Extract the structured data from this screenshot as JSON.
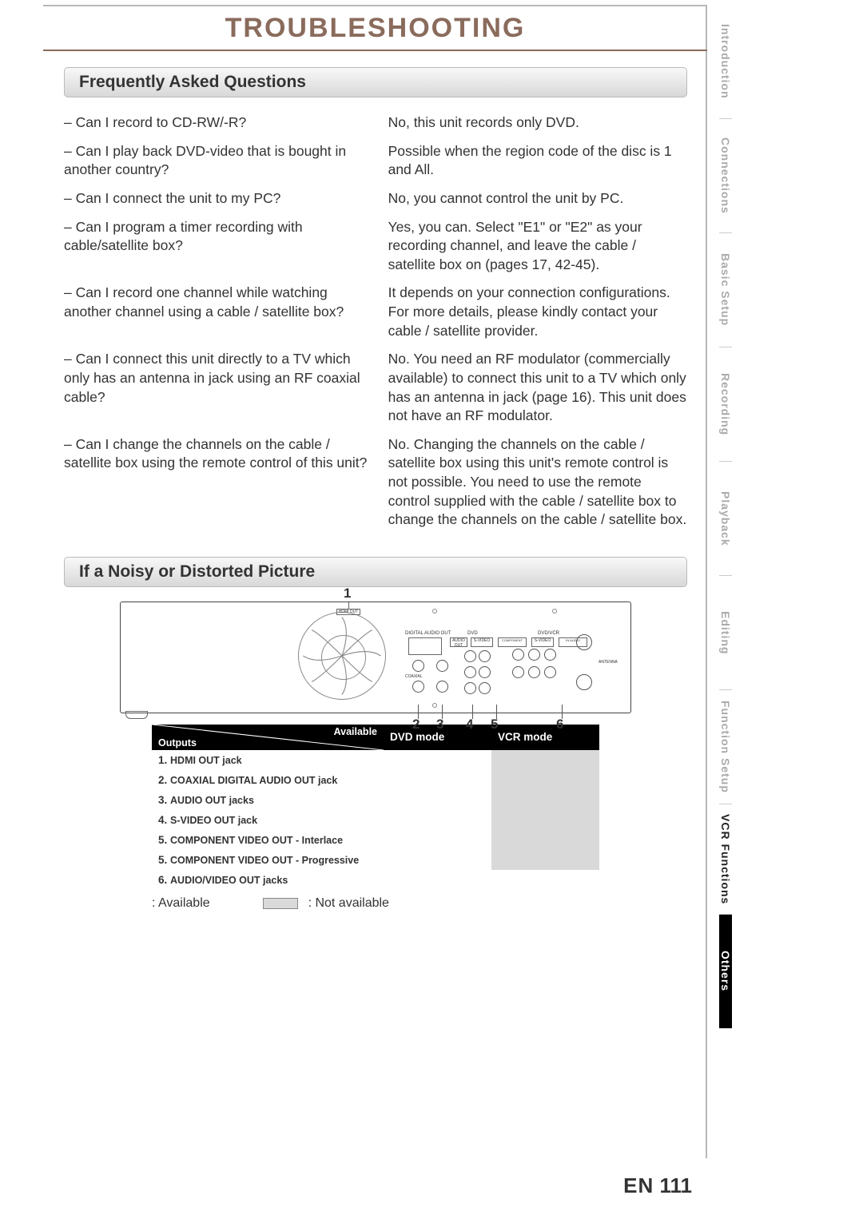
{
  "title": "TROUBLESHOOTING",
  "sections": {
    "faq": {
      "heading": "Frequently Asked Questions"
    },
    "output": {
      "heading": "If a Noisy or Distorted Picture"
    }
  },
  "faq": [
    {
      "q": "– Can I record to CD-RW/-R?",
      "a": "No, this unit records only DVD."
    },
    {
      "q": "– Can I play back DVD-video that is bought in another country?",
      "a": "Possible when the region code of the disc is 1 and All."
    },
    {
      "q": "– Can I connect the unit to my PC?",
      "a": "No, you cannot control the unit by PC."
    },
    {
      "q": "– Can I program a timer recording with cable/satellite box?",
      "a": "Yes, you can. Select \"E1\" or \"E2\" as your recording channel, and leave the cable / satellite box on (pages 17, 42-45)."
    },
    {
      "q": "– Can I record one channel while watching another channel using a cable / satellite box?",
      "a": "It depends on your connection configurations. For more details, please kindly contact your cable / satellite provider."
    },
    {
      "q": "– Can I connect this unit directly to a TV which only has an antenna in jack using an RF coaxial cable?",
      "a": "No. You need an RF modulator (commercially available) to connect this unit to a TV which only has an antenna in jack (page 16). This unit does not have an RF modulator."
    },
    {
      "q": "– Can I change the channels on the cable / satellite box using the remote control of this unit?",
      "a": "No. Changing the channels on the cable / satellite box using this unit's remote control is not possible. You need to use the remote control supplied with the cable / satellite box to change the channels on the cable / satellite box."
    }
  ],
  "diagram": {
    "num_top": "1",
    "num_bottom": [
      "2",
      "3",
      "4",
      "5",
      "6"
    ]
  },
  "table": {
    "head": {
      "corner_top": "Available",
      "corner_bottom": "Outputs",
      "col1": "DVD mode",
      "col2": "VCR mode"
    },
    "rows": [
      {
        "n": "1",
        "label": "HDMI OUT jack",
        "dvd": "avail",
        "vcr": "na"
      },
      {
        "n": "2",
        "label": "COAXIAL DIGITAL AUDIO OUT jack",
        "dvd": "avail",
        "vcr": "na"
      },
      {
        "n": "3",
        "label": "AUDIO OUT jacks",
        "dvd": "avail",
        "vcr": "na"
      },
      {
        "n": "4",
        "label": "S-VIDEO OUT jack",
        "dvd": "avail",
        "vcr": "na"
      },
      {
        "n": "5",
        "label": "COMPONENT VIDEO OUT - Interlace",
        "dvd": "avail",
        "vcr": "na"
      },
      {
        "n": "5",
        "label": "COMPONENT VIDEO OUT - Progressive",
        "dvd": "avail",
        "vcr": "na"
      },
      {
        "n": "6",
        "label": "AUDIO/VIDEO OUT jacks",
        "dvd": "avail",
        "vcr": "avail"
      }
    ]
  },
  "legend": {
    "avail": ": Available",
    "na": ": Not available"
  },
  "sidebar": [
    "Introduction",
    "Connections",
    "Basic Setup",
    "Recording",
    "Playback",
    "Editing",
    "Function Setup",
    "VCR Functions",
    "Others"
  ],
  "sidebar_active_index": 8,
  "footer": {
    "lang": "EN",
    "page": "111"
  },
  "colors": {
    "title": "#8a6b5c",
    "text": "#333333",
    "border": "#b8b8b8",
    "headerGrad1": "#f8f8f8",
    "headerGrad2": "#d8d8d8",
    "tableHead": "#000000",
    "naBg": "#d9d9d9"
  }
}
